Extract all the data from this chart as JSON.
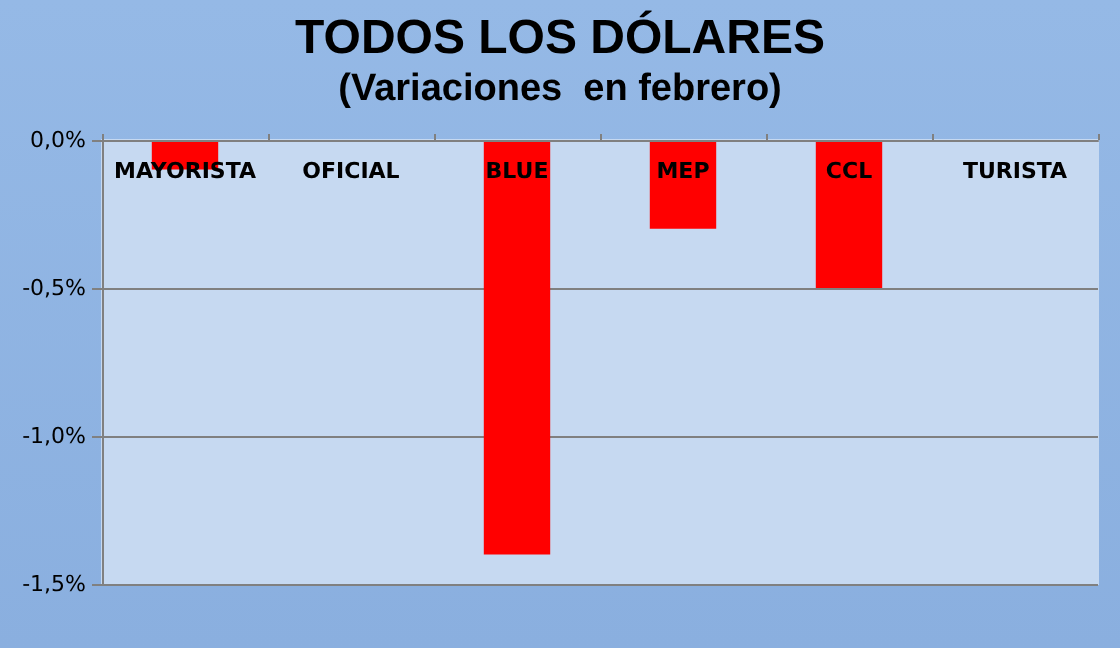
{
  "chart_data": {
    "type": "bar",
    "title": "TODOS LOS DÓLARES",
    "subtitle": "(Variaciones  en febrero)",
    "categories": [
      "MAYORISTA",
      "OFICIAL",
      "BLUE",
      "MEP",
      "CCL",
      "TURISTA"
    ],
    "values": [
      -0.1,
      0,
      -1.4,
      -0.3,
      -0.5,
      0
    ],
    "color": "#ff0000",
    "ylim": [
      -1.5,
      0
    ],
    "yticks": [
      {
        "value": 0,
        "label": "0,0%"
      },
      {
        "value": -0.5,
        "label": "-0,5%"
      },
      {
        "value": -1,
        "label": "-1,0%"
      },
      {
        "value": -1.5,
        "label": "-1,5%"
      }
    ],
    "grid": "y"
  }
}
